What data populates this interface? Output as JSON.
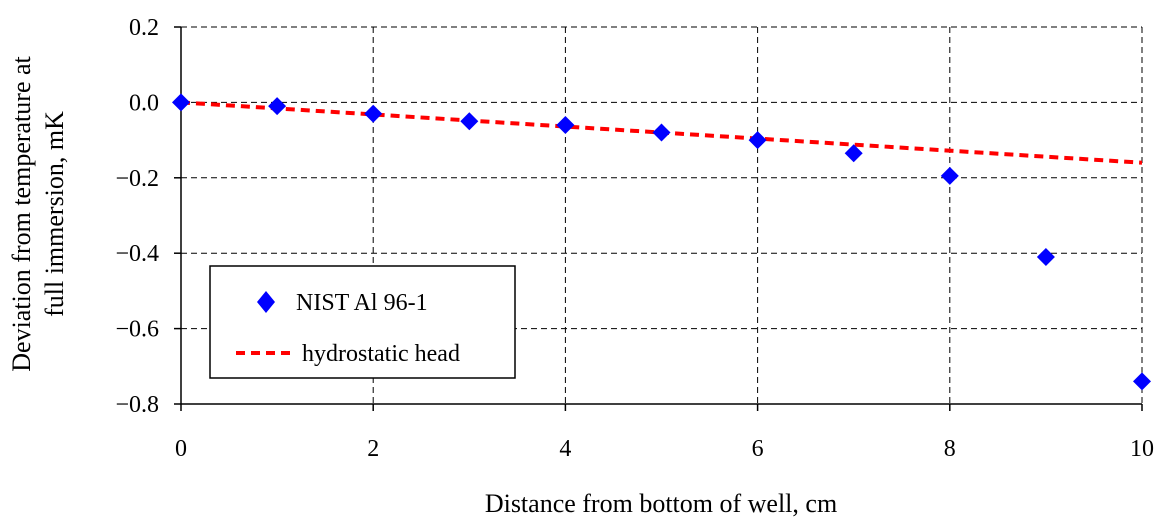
{
  "chart_data": {
    "type": "scatter",
    "title": "",
    "xlabel": "Distance from bottom of well, cm",
    "ylabel": [
      "Deviation from temperature at",
      "full immersion, mK"
    ],
    "xlim": [
      0,
      10
    ],
    "ylim": [
      -0.8,
      0.2
    ],
    "x_ticks": [
      0,
      2,
      4,
      6,
      8,
      10
    ],
    "x_tick_labels": [
      "0",
      "2",
      "4",
      "6",
      "8",
      "10"
    ],
    "y_ticks": [
      0.2,
      0.0,
      -0.2,
      -0.4,
      -0.6,
      -0.8
    ],
    "y_tick_labels": [
      "0.2",
      "0.0",
      "−0.2",
      "−0.4",
      "−0.6",
      "−0.8"
    ],
    "grid": true,
    "legend_position": "lower-left",
    "series": [
      {
        "name": "NIST Al 96-1",
        "type": "scatter",
        "marker": "diamond",
        "color": "#0000ff",
        "x": [
          0,
          1,
          2,
          3,
          4,
          5,
          6,
          7,
          8,
          9,
          10
        ],
        "y": [
          0.0,
          -0.01,
          -0.03,
          -0.05,
          -0.06,
          -0.08,
          -0.1,
          -0.135,
          -0.195,
          -0.41,
          -0.74
        ]
      },
      {
        "name": "hydrostatic head",
        "type": "line",
        "style": "dashed",
        "color": "#ff0000",
        "x": [
          0,
          10
        ],
        "y": [
          0.0,
          -0.16
        ]
      }
    ]
  }
}
